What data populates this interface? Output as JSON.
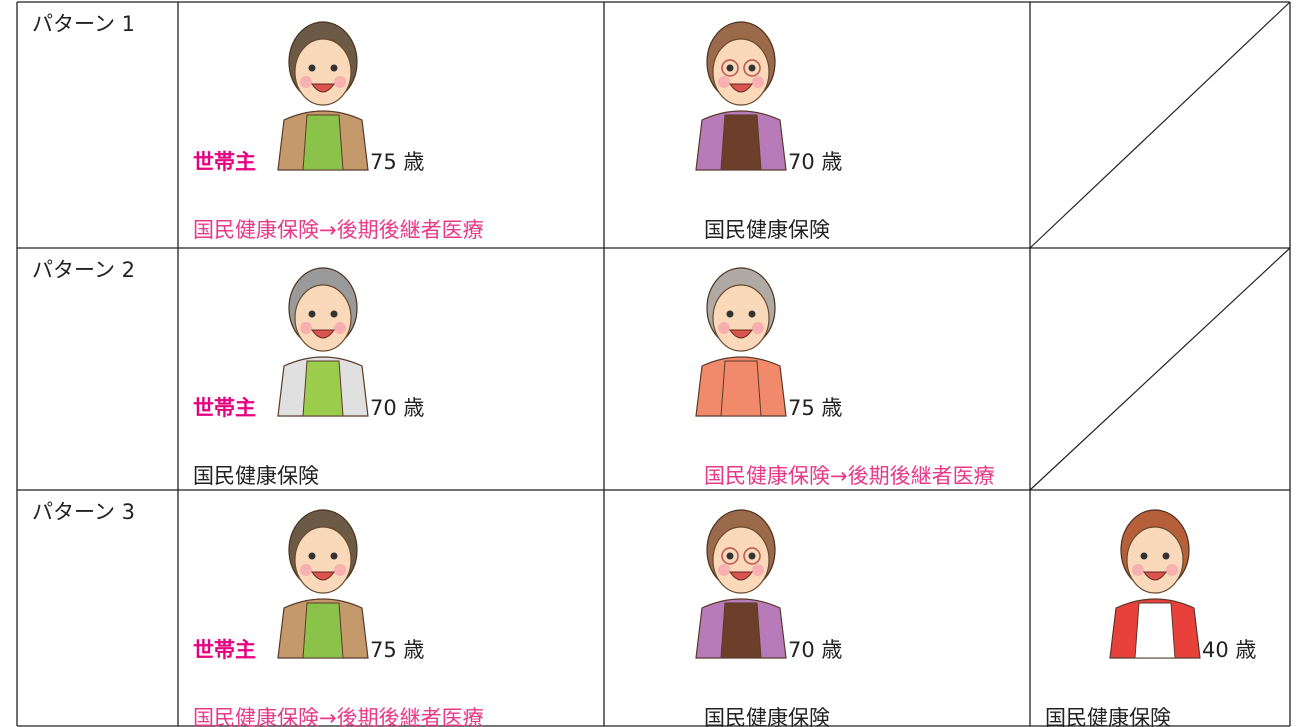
{
  "rows": [
    {
      "label": "パターン 1",
      "cells": [
        {
          "head": "世帯主",
          "age": "75 歳",
          "insurance": "国民健康保険→後期後継者医療",
          "color": "#e8388a"
        },
        {
          "age": "70 歳",
          "insurance": "国民健康保険",
          "color": "#222222"
        }
      ]
    },
    {
      "label": "パターン 2",
      "cells": [
        {
          "head": "世帯主",
          "age": "70 歳",
          "insurance": "国民健康保険",
          "color": "#222222"
        },
        {
          "age": "75 歳",
          "insurance": "国民健康保険→後期後継者医療",
          "color": "#e8388a"
        }
      ]
    },
    {
      "label": "パターン 3",
      "cells": [
        {
          "head": "世帯主",
          "age": "75 歳",
          "insurance": "国民健康保険→後期後継者医療",
          "color": "#e8388a"
        },
        {
          "age": "70 歳",
          "insurance": "国民健康保険",
          "color": "#222222"
        },
        {
          "age": "40 歳",
          "insurance": "国民健康保険",
          "color": "#222222"
        }
      ]
    }
  ]
}
